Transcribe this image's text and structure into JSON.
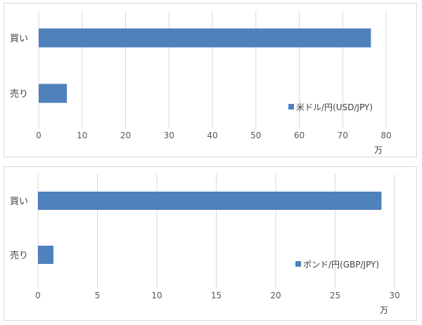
{
  "chart_data": [
    {
      "type": "bar",
      "orientation": "horizontal",
      "categories": [
        "買い",
        "売り"
      ],
      "series": [
        {
          "name": "米ドル/円(USD/JPY)",
          "values": [
            76.5,
            6.5
          ]
        }
      ],
      "xlim": [
        0,
        80
      ],
      "xticks": [
        0,
        10,
        20,
        30,
        40,
        50,
        60,
        70,
        80
      ],
      "xunit": "万",
      "grid": true,
      "legend": "bottom-right",
      "color": "#4f81bd"
    },
    {
      "type": "bar",
      "orientation": "horizontal",
      "categories": [
        "買い",
        "売り"
      ],
      "series": [
        {
          "name": "ポンド/円(GBP/JPY)",
          "values": [
            28.9,
            1.3
          ]
        }
      ],
      "xlim": [
        0,
        30
      ],
      "xticks": [
        0,
        5,
        10,
        15,
        20,
        25,
        30
      ],
      "xunit": "万",
      "grid": true,
      "legend": "bottom-right",
      "color": "#4f81bd"
    }
  ]
}
